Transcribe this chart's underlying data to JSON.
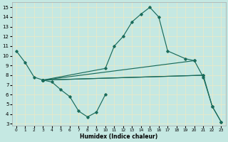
{
  "xlabel": "Humidex (Indice chaleur)",
  "xlim": [
    -0.5,
    23.5
  ],
  "ylim": [
    2.8,
    15.5
  ],
  "xticks": [
    0,
    1,
    2,
    3,
    4,
    5,
    6,
    7,
    8,
    9,
    10,
    11,
    12,
    13,
    14,
    15,
    16,
    17,
    18,
    19,
    20,
    21,
    22,
    23
  ],
  "yticks": [
    3,
    4,
    5,
    6,
    7,
    8,
    9,
    10,
    11,
    12,
    13,
    14,
    15
  ],
  "bg_color": "#c5e8e2",
  "grid_color": "#e8e8c8",
  "line_color": "#1a6b5a",
  "lines": [
    {
      "x": [
        0,
        1,
        2,
        3
      ],
      "y": [
        10.5,
        9.3,
        7.8,
        7.5
      ]
    },
    {
      "x": [
        3,
        10,
        11,
        12,
        13,
        14,
        15,
        16,
        17,
        19,
        20
      ],
      "y": [
        7.5,
        8.7,
        11.0,
        12.0,
        13.5,
        14.3,
        15.0,
        14.0,
        10.5,
        9.7,
        9.5
      ]
    },
    {
      "x": [
        3,
        4,
        5,
        6,
        7,
        8,
        9,
        10
      ],
      "y": [
        7.5,
        7.3,
        6.5,
        5.8,
        4.3,
        3.7,
        4.2,
        6.0
      ]
    },
    {
      "x": [
        3,
        21
      ],
      "y": [
        7.5,
        8.0
      ]
    },
    {
      "x": [
        3,
        21,
        22,
        23
      ],
      "y": [
        7.5,
        8.0,
        4.8,
        3.2
      ]
    },
    {
      "x": [
        3,
        20,
        21,
        22,
        23
      ],
      "y": [
        7.5,
        9.5,
        7.8,
        4.8,
        3.2
      ]
    }
  ]
}
